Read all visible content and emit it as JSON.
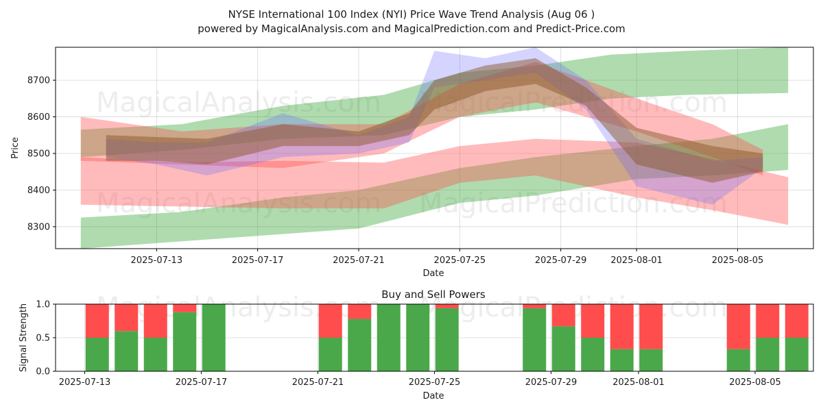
{
  "title_line1": "NYSE International 100 Index (NYI) Price Wave Trend Analysis (Aug 06 )",
  "title_line2": "powered by MagicalAnalysis.com and MagicalPrediction.com and Predict-Price.com",
  "watermarks": [
    "MagicalAnalysis.com",
    "MagicalPrediction.com"
  ],
  "colors": {
    "green_band": "#2ca02c",
    "red_band": "#ff4d4d",
    "blue_band": "#6666ff",
    "buy": "#4aa84a",
    "sell": "#ff4d4d"
  },
  "chart_data": [
    {
      "type": "area",
      "title": "",
      "xlabel": "Date",
      "ylabel": "Price",
      "xlim": [
        "2025-07-09",
        "2025-08-08"
      ],
      "ylim": [
        8240,
        8790
      ],
      "yticks": [
        8300,
        8400,
        8500,
        8600,
        8700
      ],
      "xticks": [
        "2025-07-13",
        "2025-07-17",
        "2025-07-21",
        "2025-07-25",
        "2025-07-29",
        "2025-08-01",
        "2025-08-05"
      ],
      "grid": true,
      "bands": [
        {
          "name": "green-upper-band",
          "color": "green",
          "x": [
            "2025-07-10",
            "2025-07-14",
            "2025-07-18",
            "2025-07-22",
            "2025-07-25",
            "2025-07-28",
            "2025-07-31",
            "2025-08-03",
            "2025-08-07"
          ],
          "low": [
            8490,
            8510,
            8540,
            8550,
            8600,
            8620,
            8650,
            8660,
            8665
          ],
          "high": [
            8565,
            8580,
            8630,
            8660,
            8720,
            8740,
            8770,
            8780,
            8790
          ]
        },
        {
          "name": "green-lower-band",
          "color": "green",
          "x": [
            "2025-07-10",
            "2025-07-14",
            "2025-07-18",
            "2025-07-21",
            "2025-07-23",
            "2025-07-25",
            "2025-07-28",
            "2025-08-01",
            "2025-08-04",
            "2025-08-07"
          ],
          "low": [
            8240,
            8260,
            8280,
            8295,
            8330,
            8365,
            8385,
            8430,
            8440,
            8455
          ],
          "high": [
            8325,
            8340,
            8380,
            8400,
            8430,
            8460,
            8490,
            8520,
            8540,
            8580
          ]
        },
        {
          "name": "red-upper-band",
          "color": "red",
          "x": [
            "2025-07-10",
            "2025-07-14",
            "2025-07-18",
            "2025-07-22",
            "2025-07-25",
            "2025-07-28",
            "2025-08-01",
            "2025-08-04",
            "2025-08-06"
          ],
          "low": [
            8480,
            8470,
            8460,
            8500,
            8600,
            8640,
            8560,
            8490,
            8440
          ],
          "high": [
            8600,
            8560,
            8580,
            8580,
            8690,
            8750,
            8650,
            8580,
            8510
          ]
        },
        {
          "name": "red-lower-band",
          "color": "red",
          "x": [
            "2025-07-10",
            "2025-07-14",
            "2025-07-18",
            "2025-07-22",
            "2025-07-25",
            "2025-07-28",
            "2025-08-01",
            "2025-08-04",
            "2025-08-07"
          ],
          "low": [
            8360,
            8355,
            8350,
            8350,
            8420,
            8440,
            8380,
            8345,
            8305
          ],
          "high": [
            8490,
            8475,
            8480,
            8475,
            8520,
            8540,
            8530,
            8485,
            8435
          ]
        },
        {
          "name": "blue-wave-band",
          "color": "blue",
          "x": [
            "2025-07-11",
            "2025-07-13",
            "2025-07-15",
            "2025-07-18",
            "2025-07-21",
            "2025-07-23",
            "2025-07-24",
            "2025-07-26",
            "2025-07-28",
            "2025-07-30",
            "2025-08-01",
            "2025-08-04",
            "2025-08-06"
          ],
          "low": [
            8490,
            8470,
            8440,
            8490,
            8500,
            8530,
            8680,
            8700,
            8720,
            8620,
            8410,
            8360,
            8460
          ],
          "high": [
            8540,
            8530,
            8530,
            8610,
            8550,
            8600,
            8780,
            8760,
            8790,
            8700,
            8540,
            8480,
            8490
          ]
        },
        {
          "name": "brown-consensus-band",
          "color": "brown",
          "x": [
            "2025-07-11",
            "2025-07-13",
            "2025-07-15",
            "2025-07-18",
            "2025-07-21",
            "2025-07-23",
            "2025-07-24",
            "2025-07-26",
            "2025-07-28",
            "2025-07-30",
            "2025-08-01",
            "2025-08-04",
            "2025-08-06"
          ],
          "low": [
            8480,
            8480,
            8470,
            8520,
            8520,
            8550,
            8620,
            8670,
            8690,
            8630,
            8470,
            8420,
            8450
          ],
          "high": [
            8550,
            8545,
            8540,
            8580,
            8560,
            8610,
            8700,
            8740,
            8760,
            8680,
            8570,
            8520,
            8500
          ]
        }
      ]
    },
    {
      "type": "bar",
      "title": "Buy and Sell Powers",
      "xlabel": "Date",
      "ylabel": "Signal Strength",
      "xlim": [
        "2025-07-12",
        "2025-08-07"
      ],
      "ylim": [
        0,
        1
      ],
      "yticks": [
        "0.0",
        "0.5",
        "1.0"
      ],
      "xticks": [
        "2025-07-13",
        "2025-07-17",
        "2025-07-21",
        "2025-07-25",
        "2025-07-29",
        "2025-08-01",
        "2025-08-05"
      ],
      "categories": [
        "2025-07-13",
        "2025-07-14",
        "2025-07-15",
        "2025-07-16",
        "2025-07-17",
        "2025-07-21",
        "2025-07-22",
        "2025-07-23",
        "2025-07-24",
        "2025-07-25",
        "2025-07-28",
        "2025-07-29",
        "2025-07-30",
        "2025-07-31",
        "2025-08-01",
        "2025-08-04",
        "2025-08-05",
        "2025-08-06"
      ],
      "series": [
        {
          "name": "Buy",
          "values": [
            0.5,
            0.6,
            0.5,
            0.88,
            1.0,
            0.5,
            0.78,
            1.0,
            1.0,
            0.94,
            0.94,
            0.67,
            0.5,
            0.33,
            0.33,
            0.33,
            0.5,
            0.5
          ]
        },
        {
          "name": "Sell",
          "values": [
            0.5,
            0.4,
            0.5,
            0.12,
            0.0,
            0.5,
            0.22,
            0.0,
            0.0,
            0.06,
            0.06,
            0.33,
            0.5,
            0.67,
            0.67,
            0.67,
            0.5,
            0.5
          ]
        }
      ]
    }
  ]
}
